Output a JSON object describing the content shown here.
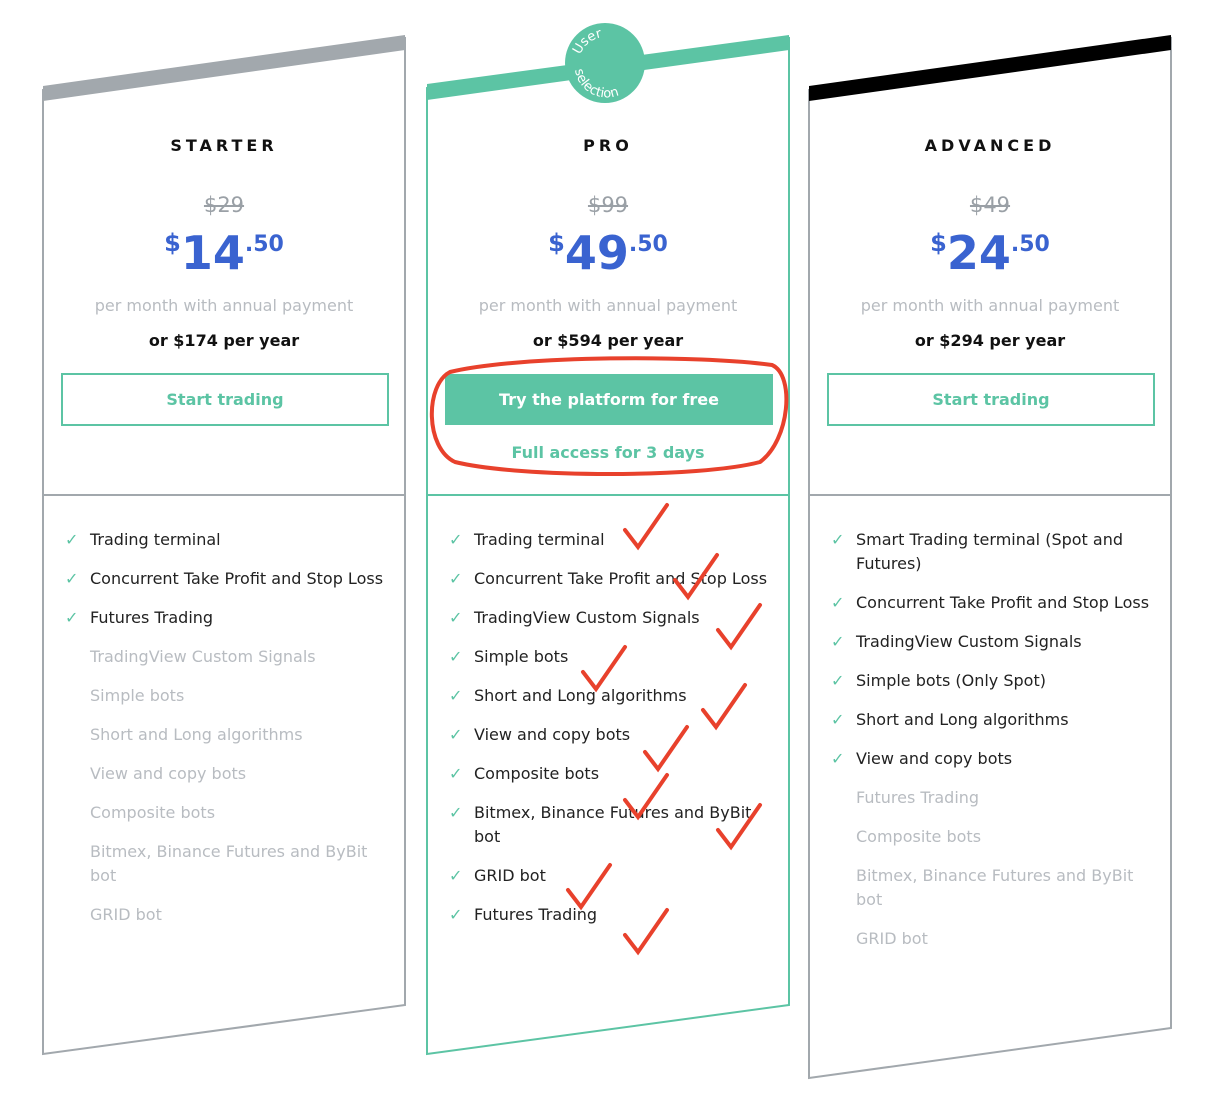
{
  "colors": {
    "accent": "#5cc4a4",
    "price": "#3a63d0",
    "starter_band": "#a2a8ad",
    "advanced_band": "#000000",
    "annotation": "#e8412c"
  },
  "badge": {
    "line1": "User",
    "line2": "selection"
  },
  "plans": [
    {
      "name": "STARTER",
      "old_price": "$29",
      "currency": "$",
      "price_int": "14",
      "price_cents": ".50",
      "per": "per month with annual payment",
      "year": "or $174 per year",
      "button": "Start trading",
      "features": [
        {
          "text": "Trading terminal",
          "included": true
        },
        {
          "text": "Concurrent Take Profit and Stop Loss",
          "included": true
        },
        {
          "text": "Futures Trading",
          "included": true
        },
        {
          "text": "TradingView Custom Signals",
          "included": false
        },
        {
          "text": "Simple bots",
          "included": false
        },
        {
          "text": "Short and Long algorithms",
          "included": false
        },
        {
          "text": "View and copy bots",
          "included": false
        },
        {
          "text": "Composite bots",
          "included": false
        },
        {
          "text": "Bitmex, Binance Futures and ByBit bot",
          "included": false
        },
        {
          "text": "GRID bot",
          "included": false
        }
      ]
    },
    {
      "name": "PRO",
      "old_price": "$99",
      "currency": "$",
      "price_int": "49",
      "price_cents": ".50",
      "per": "per month with annual payment",
      "year": "or $594 per year",
      "button": "Try the platform for free",
      "trial": "Full access for 3 days",
      "features": [
        {
          "text": "Trading terminal",
          "included": true
        },
        {
          "text": "Concurrent Take Profit and Stop Loss",
          "included": true
        },
        {
          "text": "TradingView Custom Signals",
          "included": true
        },
        {
          "text": "Simple bots",
          "included": true
        },
        {
          "text": "Short and Long algorithms",
          "included": true
        },
        {
          "text": "View and copy bots",
          "included": true
        },
        {
          "text": "Composite bots",
          "included": true
        },
        {
          "text": "Bitmex, Binance Futures and ByBit bot",
          "included": true
        },
        {
          "text": "GRID bot",
          "included": true
        },
        {
          "text": "Futures Trading",
          "included": true
        }
      ]
    },
    {
      "name": "ADVANCED",
      "old_price": "$49",
      "currency": "$",
      "price_int": "24",
      "price_cents": ".50",
      "per": "per month with annual payment",
      "year": "or $294 per year",
      "button": "Start trading",
      "features": [
        {
          "text": "Smart Trading terminal (Spot and Futures)",
          "included": true
        },
        {
          "text": "Concurrent Take Profit and Stop Loss",
          "included": true
        },
        {
          "text": "TradingView Custom Signals",
          "included": true
        },
        {
          "text": "Simple bots (Only Spot)",
          "included": true
        },
        {
          "text": "Short and Long algorithms",
          "included": true
        },
        {
          "text": "View and copy bots",
          "included": true
        },
        {
          "text": "Futures Trading",
          "included": false
        },
        {
          "text": "Composite bots",
          "included": false
        },
        {
          "text": "Bitmex, Binance Futures and ByBit bot",
          "included": false
        },
        {
          "text": "GRID bot",
          "included": false
        }
      ]
    }
  ]
}
